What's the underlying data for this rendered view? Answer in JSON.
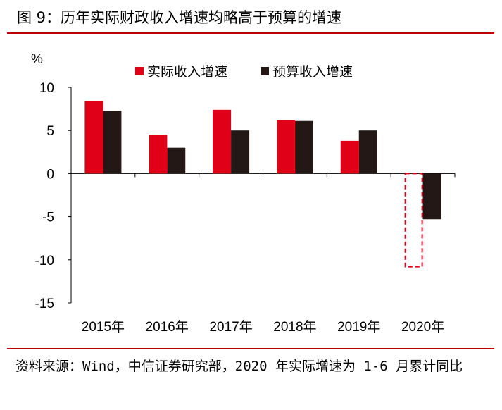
{
  "header": {
    "title": "图 9：历年实际财政收入增速均略高于预算的增速"
  },
  "footer": {
    "source": "资料来源：Wind，中信证券研究部，2020 年实际增速为 1-6 月累计同比"
  },
  "chart_data": {
    "type": "bar",
    "title": "",
    "ylabel": "%",
    "xlabel": "",
    "ylim": [
      -15,
      10
    ],
    "yticks": [
      10,
      5,
      0,
      -5,
      -10,
      -15
    ],
    "categories": [
      "2015年",
      "2016年",
      "2017年",
      "2018年",
      "2019年",
      "2020年"
    ],
    "series": [
      {
        "name": "实际收入增速",
        "color": "#e00018",
        "values": [
          8.4,
          4.5,
          7.4,
          6.2,
          3.8,
          -10.8
        ],
        "outline_only_indices": [
          5
        ]
      },
      {
        "name": "预算收入增速",
        "color": "#231815",
        "values": [
          7.3,
          3.0,
          5.0,
          6.1,
          5.0,
          -5.3
        ]
      }
    ],
    "legend_position": "top",
    "grid": false
  }
}
